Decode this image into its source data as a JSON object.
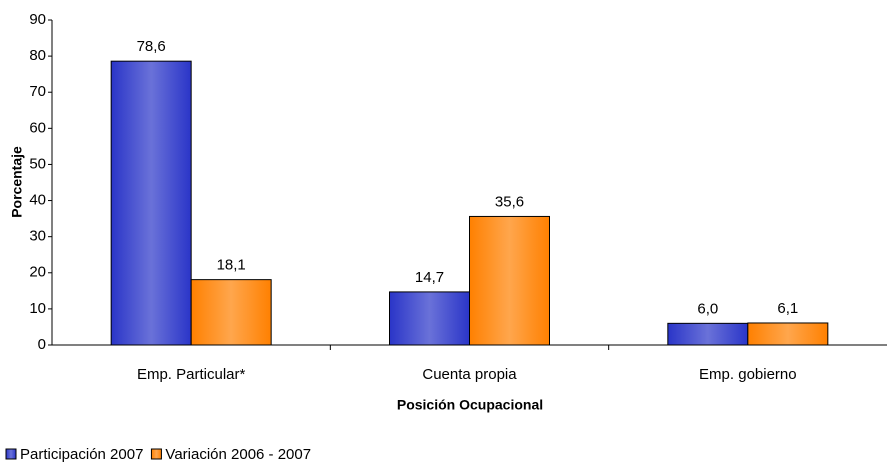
{
  "chart_data": {
    "type": "bar",
    "x_label": "Posición Ocupacional",
    "y_label": "Porcentaje",
    "categories": [
      "Emp. Particular*",
      "Cuenta propia",
      "Emp. gobierno"
    ],
    "series": [
      {
        "name": "Participación 2007",
        "color": "#2a35c8",
        "values": [
          78.6,
          14.7,
          6.0
        ],
        "value_labels": [
          "78,6",
          "14,7",
          "6,0"
        ]
      },
      {
        "name": "Variación 2006 - 2007",
        "color": "#ff8000",
        "values": [
          18.1,
          35.6,
          6.1
        ],
        "value_labels": [
          "18,1",
          "35,6",
          "6,1"
        ]
      }
    ],
    "ylim": [
      0,
      90
    ],
    "yticks": [
      0,
      10,
      20,
      30,
      40,
      50,
      60,
      70,
      80,
      90
    ],
    "grid": false,
    "legend": "bottom-left"
  }
}
